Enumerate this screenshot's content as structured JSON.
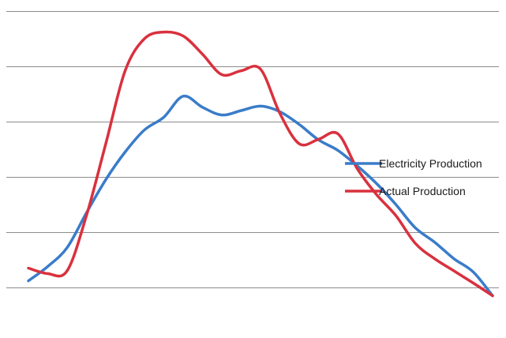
{
  "chart_data": {
    "type": "line",
    "title": "",
    "xlabel": "",
    "ylabel": "",
    "x": [
      0,
      1,
      2,
      3,
      4,
      5,
      6,
      7,
      8,
      9,
      10,
      11,
      12,
      13,
      14,
      15,
      16,
      17,
      18,
      19,
      20,
      21,
      22,
      23,
      24
    ],
    "ylim": [
      0,
      5
    ],
    "grid": true,
    "legend_position": "right",
    "series": [
      {
        "name": "Electricity Production",
        "color": "#3a7cc9",
        "values": [
          0.12,
          0.38,
          0.72,
          1.35,
          1.95,
          2.45,
          2.85,
          3.08,
          3.46,
          3.26,
          3.12,
          3.2,
          3.28,
          3.18,
          2.95,
          2.67,
          2.48,
          2.2,
          1.88,
          1.5,
          1.08,
          0.82,
          0.52,
          0.28,
          -0.15
        ]
      },
      {
        "name": "Actual Production",
        "color": "#d9313e",
        "values": [
          0.35,
          0.25,
          0.3,
          1.3,
          2.6,
          3.92,
          4.5,
          4.62,
          4.55,
          4.22,
          3.85,
          3.92,
          3.95,
          3.15,
          2.6,
          2.68,
          2.78,
          2.15,
          1.68,
          1.3,
          0.8,
          0.52,
          0.3,
          0.08,
          -0.15
        ]
      }
    ]
  }
}
